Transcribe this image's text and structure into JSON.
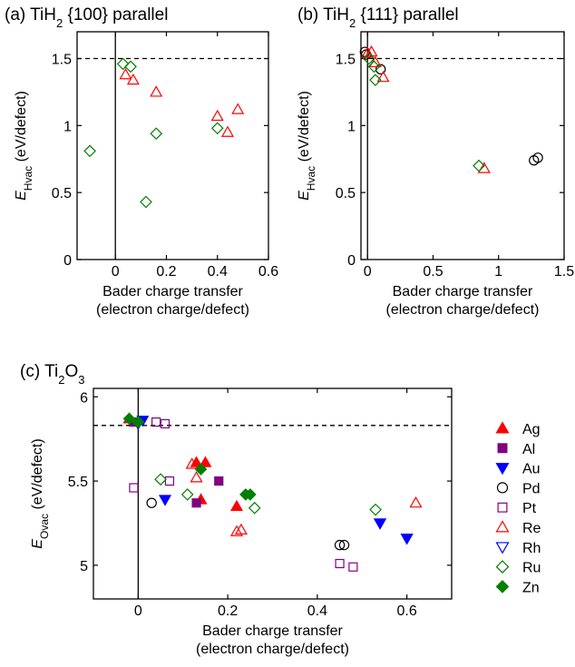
{
  "chart_data": [
    {
      "type": "scatter",
      "title": {
        "prefix": "(a) TiH",
        "sub": "2",
        "suffix": " {100} parallel"
      },
      "ylabel": {
        "main": "E",
        "sub": "Hvac",
        "rest": " (eV/defect)"
      },
      "xlabel": {
        "line1": "Bader charge transfer",
        "line2": "(electron charge/defect)"
      },
      "xlim": [
        -0.15,
        0.6
      ],
      "ylim": [
        0,
        1.7
      ],
      "xticks": [
        0,
        0.2,
        0.4,
        0.6
      ],
      "xtick_labels": [
        "0",
        "0.2",
        "0.4",
        "0.6"
      ],
      "yticks": [
        0,
        0.5,
        1,
        1.5
      ],
      "ytick_labels": [
        "0",
        "0.5",
        "1",
        "1.5"
      ],
      "reference_line": 1.5,
      "series": [
        {
          "name": "Re",
          "points": [
            [
              0.04,
              1.38
            ],
            [
              0.07,
              1.34
            ],
            [
              0.16,
              1.25
            ],
            [
              0.4,
              1.07
            ],
            [
              0.44,
              0.95
            ],
            [
              0.48,
              1.12
            ]
          ]
        },
        {
          "name": "Ru",
          "points": [
            [
              0.03,
              1.46
            ],
            [
              0.06,
              1.44
            ],
            [
              -0.1,
              0.81
            ],
            [
              0.12,
              0.43
            ],
            [
              0.16,
              0.94
            ],
            [
              0.4,
              0.98
            ]
          ]
        }
      ]
    },
    {
      "type": "scatter",
      "title": {
        "prefix": "(b) TiH",
        "sub": "2",
        "suffix": " {111} parallel"
      },
      "ylabel": {
        "main": "E",
        "sub": "Hvac",
        "rest": " (eV/defect)"
      },
      "xlabel": {
        "line1": "Bader charge transfer",
        "line2": "(electron charge/defect)"
      },
      "xlim": [
        -0.05,
        1.5
      ],
      "ylim": [
        0,
        1.7
      ],
      "xticks": [
        0,
        0.5,
        1,
        1.5
      ],
      "xtick_labels": [
        "0",
        "0.5",
        "1",
        "1.5"
      ],
      "yticks": [
        0,
        0.5,
        1,
        1.5
      ],
      "ytick_labels": [
        "0",
        "0.5",
        "1",
        "1.5"
      ],
      "reference_line": 1.5,
      "series": [
        {
          "name": "Pd",
          "points": [
            [
              -0.02,
              1.55
            ],
            [
              -0.01,
              1.53
            ],
            [
              0.1,
              1.42
            ],
            [
              1.27,
              0.74
            ],
            [
              1.3,
              0.76
            ]
          ]
        },
        {
          "name": "Re",
          "points": [
            [
              0.0,
              1.54
            ],
            [
              0.03,
              1.55
            ],
            [
              0.06,
              1.47
            ],
            [
              0.12,
              1.36
            ],
            [
              0.89,
              0.68
            ]
          ]
        },
        {
          "name": "Ru",
          "points": [
            [
              0.01,
              1.5
            ],
            [
              0.05,
              1.44
            ],
            [
              0.06,
              1.34
            ],
            [
              0.85,
              0.7
            ]
          ]
        }
      ]
    },
    {
      "type": "scatter",
      "title": {
        "prefix": "(c) Ti",
        "sub": "2",
        "mid": "O",
        "sub2": "3",
        "suffix": ""
      },
      "ylabel": {
        "main": "E",
        "sub": "Ovac",
        "rest": " (eV/defect)"
      },
      "xlabel": {
        "line1": "Bader charge transfer",
        "line2": "(electron charge/defect)"
      },
      "xlim": [
        -0.1,
        0.7
      ],
      "ylim": [
        4.8,
        6.05
      ],
      "xticks": [
        0,
        0.2,
        0.4,
        0.6
      ],
      "xtick_labels": [
        "0",
        "0.2",
        "0.4",
        "0.6"
      ],
      "yticks": [
        5,
        5.5,
        6
      ],
      "ytick_labels": [
        "5",
        "5.5",
        "6"
      ],
      "reference_line": 5.83,
      "series": [
        {
          "name": "Ag",
          "points": [
            [
              -0.02,
              5.87
            ],
            [
              0.13,
              5.61
            ],
            [
              0.15,
              5.61
            ],
            [
              0.14,
              5.39
            ],
            [
              0.22,
              5.35
            ]
          ]
        },
        {
          "name": "Al",
          "points": [
            [
              -0.01,
              5.85
            ],
            [
              0.13,
              5.37
            ],
            [
              0.18,
              5.5
            ]
          ]
        },
        {
          "name": "Au",
          "points": [
            [
              0.01,
              5.86
            ],
            [
              0.06,
              5.39
            ],
            [
              0.54,
              5.25
            ],
            [
              0.6,
              5.16
            ]
          ]
        },
        {
          "name": "Pd",
          "points": [
            [
              0.03,
              5.37
            ],
            [
              0.45,
              5.12
            ],
            [
              0.46,
              5.12
            ]
          ]
        },
        {
          "name": "Pt",
          "points": [
            [
              -0.01,
              5.46
            ],
            [
              0.04,
              5.85
            ],
            [
              0.06,
              5.84
            ],
            [
              0.07,
              5.5
            ],
            [
              0.45,
              5.01
            ],
            [
              0.48,
              4.99
            ]
          ]
        },
        {
          "name": "Re",
          "points": [
            [
              0.12,
              5.6
            ],
            [
              0.13,
              5.52
            ],
            [
              0.22,
              5.2
            ],
            [
              0.23,
              5.21
            ],
            [
              0.62,
              5.37
            ]
          ]
        },
        {
          "name": "Rh",
          "points": [
            [
              0.0,
              5.84
            ],
            [
              0.54,
              5.25
            ],
            [
              0.6,
              5.16
            ]
          ]
        },
        {
          "name": "Ru",
          "points": [
            [
              0.0,
              5.85
            ],
            [
              0.05,
              5.51
            ],
            [
              0.11,
              5.42
            ],
            [
              0.26,
              5.34
            ],
            [
              0.53,
              5.33
            ]
          ]
        },
        {
          "name": "Zn",
          "points": [
            [
              -0.02,
              5.87
            ],
            [
              0.0,
              5.85
            ],
            [
              0.14,
              5.57
            ],
            [
              0.24,
              5.42
            ],
            [
              0.25,
              5.42
            ]
          ]
        }
      ],
      "legend": {
        "placement": "right",
        "entries": [
          {
            "label": "Ag",
            "marker": "triangle-up",
            "filled": true,
            "color": "#ff0000"
          },
          {
            "label": "Al",
            "marker": "square",
            "filled": true,
            "color": "#800080"
          },
          {
            "label": "Au",
            "marker": "triangle-down",
            "filled": true,
            "color": "#0000ff"
          },
          {
            "label": "Pd",
            "marker": "circle",
            "filled": false,
            "color": "#000000"
          },
          {
            "label": "Pt",
            "marker": "square",
            "filled": false,
            "color": "#800080"
          },
          {
            "label": "Re",
            "marker": "triangle-up",
            "filled": false,
            "color": "#ff0000"
          },
          {
            "label": "Rh",
            "marker": "triangle-down",
            "filled": false,
            "color": "#0000ff"
          },
          {
            "label": "Ru",
            "marker": "diamond",
            "filled": false,
            "color": "#008000"
          },
          {
            "label": "Zn",
            "marker": "diamond",
            "filled": true,
            "color": "#008000"
          }
        ]
      }
    }
  ]
}
